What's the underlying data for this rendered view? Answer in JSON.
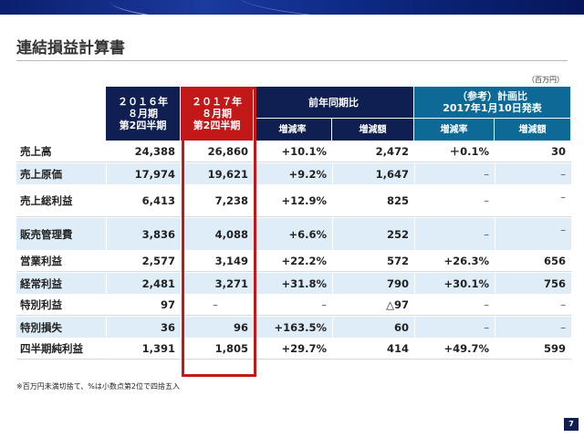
{
  "page": {
    "title": "連結損益計算書",
    "unit_note": "（百万円）",
    "footnote": "※百万円未満切捨て、%は小数点第2位で四捨五入",
    "page_number": "7"
  },
  "header": {
    "fy2016": [
      "２０１６年",
      "８月期",
      "第2四半期"
    ],
    "fy2017": [
      "２０１７年",
      "８月期",
      "第2四半期"
    ],
    "yoy_group": "前年同期比",
    "plan_group": [
      "（参考）計画比",
      "2017年1月10日発表"
    ],
    "yoy_rate": "増減率",
    "yoy_amount": "増減額",
    "plan_rate": "増減率",
    "plan_amount": "増減額"
  },
  "rows": [
    {
      "label": "売上高",
      "v2016": "24,388",
      "v2017": "26,860",
      "yoy_rate": "+10.1%",
      "yoy_amount": "2,472",
      "plan_rate": "＋0.1%",
      "plan_amount": "30"
    },
    {
      "label": "売上原価",
      "v2016": "17,974",
      "v2017": "19,621",
      "yoy_rate": "+9.2%",
      "yoy_amount": "1,647",
      "plan_rate": "–",
      "plan_amount": "–"
    },
    {
      "label": "売上総利益",
      "v2016": "6,413",
      "v2017": "7,238",
      "yoy_rate": "+12.9%",
      "yoy_amount": "825",
      "plan_rate": "–",
      "plan_amount": "–"
    },
    {
      "label": "販売管理費",
      "v2016": "3,836",
      "v2017": "4,088",
      "yoy_rate": "+6.6%",
      "yoy_amount": "252",
      "plan_rate": "–",
      "plan_amount": "–"
    },
    {
      "label": "営業利益",
      "v2016": "2,577",
      "v2017": "3,149",
      "yoy_rate": "+22.2%",
      "yoy_amount": "572",
      "plan_rate": "+26.3%",
      "plan_amount": "656"
    },
    {
      "label": "経常利益",
      "v2016": "2,481",
      "v2017": "3,271",
      "yoy_rate": "+31.8%",
      "yoy_amount": "790",
      "plan_rate": "+30.1%",
      "plan_amount": "756"
    },
    {
      "label": "特別利益",
      "v2016": "97",
      "v2017": "–",
      "yoy_rate": "–",
      "yoy_amount": "△97",
      "plan_rate": "–",
      "plan_amount": "–"
    },
    {
      "label": "特別損失",
      "v2016": "36",
      "v2017": "96",
      "yoy_rate": "+163.5%",
      "yoy_amount": "60",
      "plan_rate": "–",
      "plan_amount": "–"
    },
    {
      "label": "四半期純利益",
      "v2016": "1,391",
      "v2017": "1,805",
      "yoy_rate": "+29.7%",
      "yoy_amount": "414",
      "plan_rate": "+49.7%",
      "plan_amount": "599"
    }
  ]
}
